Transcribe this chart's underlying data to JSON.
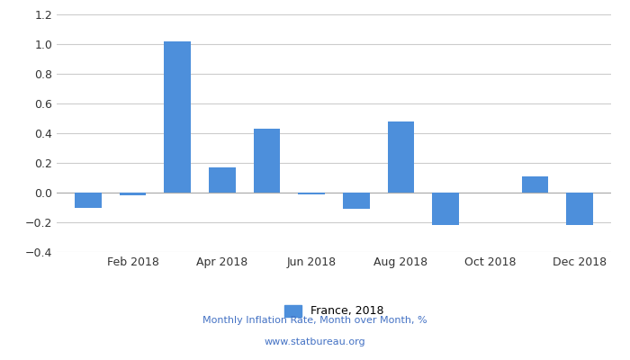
{
  "month_values": [
    -0.1,
    -0.02,
    1.02,
    0.17,
    0.43,
    -0.01,
    -0.11,
    0.48,
    -0.22,
    0.0,
    0.11,
    -0.22
  ],
  "bar_color": "#4d8fdb",
  "ylim": [
    -0.4,
    1.2
  ],
  "yticks": [
    -0.4,
    -0.2,
    0.0,
    0.2,
    0.4,
    0.6,
    0.8,
    1.0,
    1.2
  ],
  "xtick_positions": [
    1,
    3,
    5,
    7,
    9,
    11
  ],
  "xtick_labels": [
    "Feb 2018",
    "Apr 2018",
    "Jun 2018",
    "Aug 2018",
    "Oct 2018",
    "Dec 2018"
  ],
  "legend_label": "France, 2018",
  "footer_line1": "Monthly Inflation Rate, Month over Month, %",
  "footer_line2": "www.statbureau.org",
  "background_color": "#ffffff",
  "grid_color": "#cccccc",
  "footer_color": "#4472c4",
  "bar_width": 0.6,
  "xlim": [
    -0.7,
    11.7
  ]
}
